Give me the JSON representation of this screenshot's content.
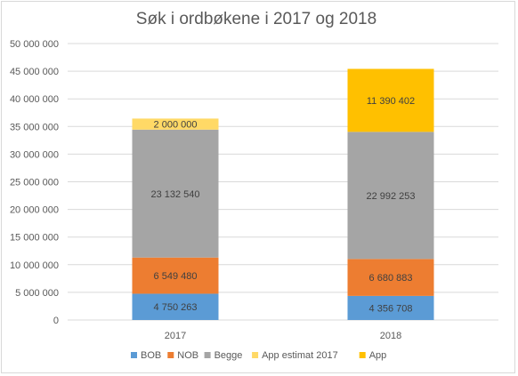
{
  "chart_data": {
    "type": "bar",
    "stacked": true,
    "title": "Søk i ordbøkene i 2017 og 2018",
    "categories": [
      "2017",
      "2018"
    ],
    "ylim": [
      0,
      50000000
    ],
    "yticks": [
      0,
      5000000,
      10000000,
      15000000,
      20000000,
      25000000,
      30000000,
      35000000,
      40000000,
      45000000,
      50000000
    ],
    "ytick_labels": [
      "0",
      "5 000 000",
      "10 000 000",
      "15 000 000",
      "20 000 000",
      "25 000 000",
      "30 000 000",
      "35 000 000",
      "40 000 000",
      "45 000 000",
      "50 000 000"
    ],
    "grid": true,
    "legend_position": "bottom",
    "series": [
      {
        "name": "BOB",
        "color": "#5b9bd5",
        "values": [
          4750263,
          4356708
        ],
        "labels": [
          "4 750 263",
          "4 356 708"
        ]
      },
      {
        "name": "NOB",
        "color": "#ed7d31",
        "values": [
          6549480,
          6680883
        ],
        "labels": [
          "6 549 480",
          "6 680 883"
        ]
      },
      {
        "name": "Begge",
        "color": "#a5a5a5",
        "values": [
          23132540,
          22992253
        ],
        "labels": [
          "23 132 540",
          "22 992 253"
        ]
      },
      {
        "name": "App estimat 2017",
        "color": "#ffd966",
        "values": [
          2000000,
          0
        ],
        "labels": [
          "2 000 000",
          ""
        ]
      },
      {
        "name": "App",
        "color": "#ffc000",
        "values": [
          0,
          11390402
        ],
        "labels": [
          "",
          "11 390 402"
        ]
      }
    ]
  }
}
